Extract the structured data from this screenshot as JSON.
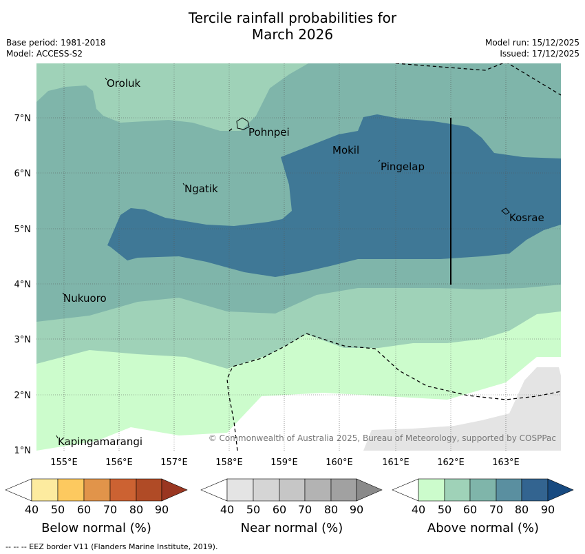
{
  "title": {
    "line1": "Tercile rainfall probabilities for",
    "line2": "March 2026"
  },
  "meta": {
    "base_period": "Base period: 1981-2018",
    "model": "Model: ACCESS-S2",
    "model_run": "Model run: 15/12/2025",
    "issued": "Issued: 17/12/2025"
  },
  "map": {
    "lat_labels": [
      "7°N",
      "6°N",
      "5°N",
      "4°N",
      "3°N",
      "2°N",
      "1°N"
    ],
    "lon_labels": [
      "155°E",
      "156°E",
      "157°E",
      "158°E",
      "159°E",
      "160°E",
      "161°E",
      "162°E",
      "163°E"
    ],
    "places": [
      "Oroluk",
      "Pohnpei",
      "Mokil",
      "Pingelap",
      "Ngatik",
      "Kosrae",
      "Nukuoro",
      "Kapingamarangi"
    ],
    "copyright": "© Commonwealth of Australia 2025, Bureau of Meteorology, supported by COSPPac"
  },
  "colorbars": {
    "ticks": [
      "40",
      "50",
      "60",
      "70",
      "80",
      "90"
    ],
    "below": {
      "label": "Below normal (%)",
      "colors": [
        "#ffffff",
        "#fdeb9f",
        "#fdc95f",
        "#e1944a",
        "#cc6232",
        "#b04b26",
        "#9a3621"
      ]
    },
    "near": {
      "label": "Near normal (%)",
      "colors": [
        "#ffffff",
        "#e4e4e4",
        "#d5d5d5",
        "#c6c6c6",
        "#b3b3b3",
        "#a1a1a1",
        "#8a8a8a"
      ]
    },
    "above": {
      "label": "Above normal (%)",
      "colors": [
        "#ffffff",
        "#ccfccc",
        "#9fd2b8",
        "#7fb5aa",
        "#5a8fa0",
        "#336490",
        "#174a80"
      ]
    }
  },
  "footnote": "--  --  -- EEZ border V11 (Flanders Marine Institute, 2019)."
}
